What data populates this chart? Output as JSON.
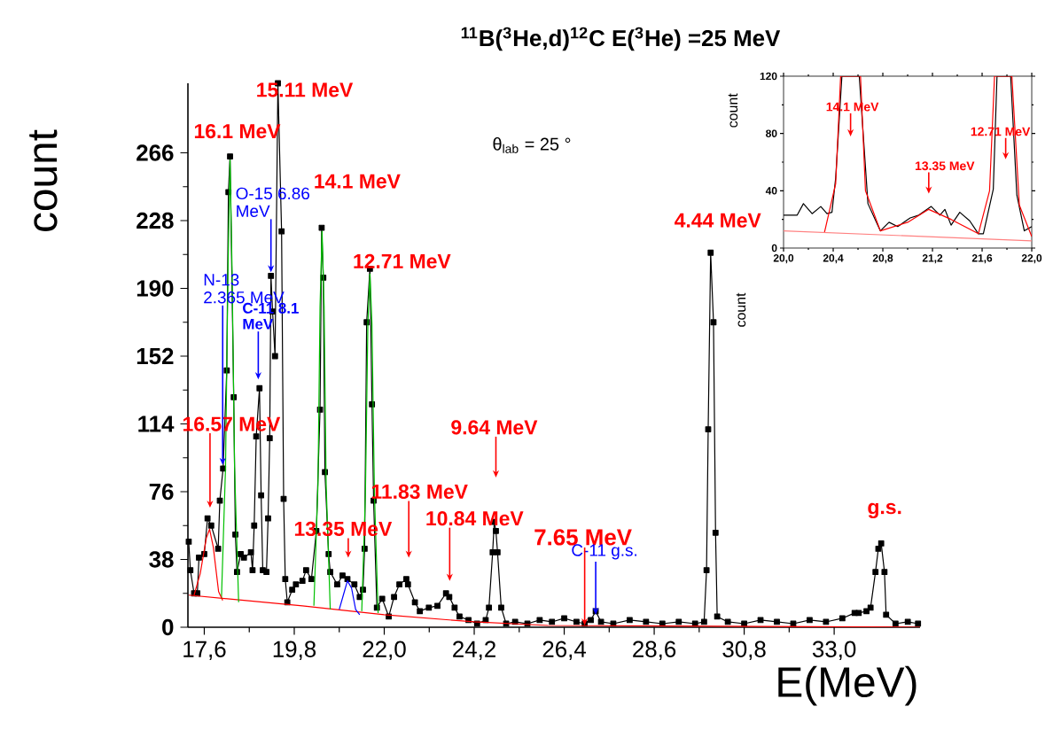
{
  "chart_data": [
    {
      "type": "line",
      "title": "$^{11}$B($^{3}$He,d)$^{12}$C   E($^{3}$He) =25 MeV",
      "xlabel": "E(MeV)",
      "ylabel": "count",
      "marker": "square",
      "xlim": [
        17.2,
        35.1
      ],
      "ylim": [
        0,
        305
      ],
      "xticks": [
        {
          "value": 17.6,
          "label": "17,6"
        },
        {
          "value": 19.8,
          "label": "19,8"
        },
        {
          "value": 22.0,
          "label": "22,0"
        },
        {
          "value": 24.2,
          "label": "24,2"
        },
        {
          "value": 26.4,
          "label": "26,4"
        },
        {
          "value": 28.6,
          "label": "28,6"
        },
        {
          "value": 30.8,
          "label": "30,8"
        },
        {
          "value": 33.0,
          "label": "33,0"
        }
      ],
      "yticks": [
        0,
        38,
        76,
        114,
        152,
        190,
        228,
        266
      ],
      "series": [
        {
          "color": "#000000",
          "x": [
            17.22,
            17.26,
            17.35,
            17.43,
            17.47,
            17.6,
            17.68,
            17.77,
            17.94,
            17.98,
            18.06,
            18.15,
            18.19,
            18.23,
            18.32,
            18.36,
            18.4,
            18.49,
            18.57,
            18.74,
            18.78,
            18.82,
            18.87,
            18.95,
            18.99,
            19.03,
            19.12,
            19.16,
            19.2,
            19.23,
            19.27,
            19.33,
            19.4,
            19.49,
            19.54,
            19.58,
            19.63,
            19.75,
            19.84,
            20.0,
            20.09,
            20.22,
            20.34,
            20.43,
            20.47,
            20.51,
            20.55,
            20.64,
            20.68,
            20.85,
            20.98,
            21.1,
            21.27,
            21.4,
            21.48,
            21.52,
            21.57,
            21.65,
            21.7,
            21.74,
            21.82,
            21.95,
            22.11,
            22.24,
            22.37,
            22.54,
            22.58,
            22.75,
            22.87,
            23.09,
            23.3,
            23.51,
            23.59,
            23.72,
            23.84,
            24.06,
            24.27,
            24.48,
            24.56,
            24.65,
            24.69,
            24.73,
            24.77,
            24.86,
            24.98,
            25.2,
            25.5,
            25.8,
            26.1,
            26.4,
            26.7,
            26.9,
            27.05,
            27.17,
            27.3,
            27.6,
            28.0,
            28.4,
            28.8,
            29.2,
            29.6,
            29.82,
            29.88,
            29.92,
            29.98,
            30.05,
            30.1,
            30.14,
            30.4,
            30.8,
            31.2,
            31.6,
            32.0,
            32.4,
            32.8,
            33.2,
            33.5,
            33.6,
            33.79,
            33.89,
            34.01,
            34.08,
            34.15,
            34.23,
            34.27,
            34.5,
            34.8,
            35.05
          ],
          "values": [
            48,
            32,
            19,
            19,
            39,
            41,
            61,
            57,
            44,
            71,
            89,
            144,
            244,
            264,
            129,
            52,
            31,
            41,
            39,
            42,
            32,
            57,
            107,
            134,
            74,
            32,
            31,
            61,
            106,
            197,
            177,
            152,
            305,
            222,
            72,
            27,
            14,
            21,
            24,
            26,
            32,
            27,
            54,
            122,
            224,
            196,
            87,
            41,
            31,
            24,
            29,
            27,
            24,
            17,
            21,
            44,
            171,
            201,
            125,
            71,
            11,
            16,
            6,
            17,
            24,
            27,
            24,
            14,
            9,
            11,
            12,
            19,
            17,
            11,
            6,
            4,
            2,
            4,
            11,
            42,
            59,
            54,
            42,
            11,
            2,
            3,
            2,
            4,
            3,
            5,
            3,
            2,
            4,
            9,
            3,
            2,
            4,
            3,
            2,
            3,
            2,
            3,
            32,
            111,
            210,
            171,
            53,
            6,
            3,
            2,
            4,
            3,
            2,
            4,
            3,
            5,
            8,
            8,
            9,
            11,
            31,
            44,
            47,
            31,
            7,
            2,
            3,
            2
          ]
        },
        {
          "color": "#ff0000",
          "marker": "none",
          "x": [
            17.22,
            20.0,
            22.0,
            24.2,
            26.0,
            35.1
          ],
          "values": [
            18,
            12,
            7,
            3,
            1,
            0
          ]
        },
        {
          "color": "#00c000",
          "marker": "none",
          "x": [
            18.02,
            18.12,
            18.18,
            18.23,
            18.28,
            18.34,
            18.44
          ],
          "values": [
            16,
            90,
            200,
            262,
            200,
            90,
            14
          ]
        },
        {
          "color": "#00c000",
          "marker": "none",
          "x": [
            20.28,
            20.38,
            20.43,
            20.48,
            20.53,
            20.58,
            20.68
          ],
          "values": [
            12,
            80,
            180,
            222,
            180,
            80,
            10
          ]
        },
        {
          "color": "#00c000",
          "marker": "none",
          "x": [
            21.45,
            21.54,
            21.6,
            21.65,
            21.7,
            21.76,
            21.85
          ],
          "values": [
            9,
            75,
            170,
            198,
            170,
            75,
            8
          ]
        },
        {
          "color": "#ff0000",
          "marker": "none",
          "x": [
            17.35,
            17.5,
            17.65,
            17.73,
            17.82,
            17.95,
            18.05
          ],
          "values": [
            18,
            30,
            50,
            55,
            45,
            20,
            15
          ]
        },
        {
          "color": "#0000ff",
          "marker": "none",
          "x": [
            20.9,
            21.0,
            21.1,
            21.2,
            21.3,
            21.4
          ],
          "values": [
            10,
            18,
            26,
            22,
            10,
            7
          ]
        }
      ],
      "annotations": [
        {
          "text": "16.1 MeV",
          "x": 18.23,
          "y": 264
        },
        {
          "text": "15.11 MeV",
          "x": 19.4,
          "y": 305
        },
        {
          "text": "14.1 MeV",
          "x": 20.47,
          "y": 224
        },
        {
          "text": "12.71 MeV",
          "x": 21.65,
          "y": 201
        },
        {
          "text": "16.57 MeV",
          "x": 17.74,
          "y": 67
        },
        {
          "text": "13.35 MeV",
          "x": 21.12,
          "y": 39
        },
        {
          "text": "11.83 MeV",
          "x": 22.6,
          "y": 39
        },
        {
          "text": "10.84 MeV",
          "x": 23.6,
          "y": 26
        },
        {
          "text": "9.64 MeV",
          "x": 24.73,
          "y": 84
        },
        {
          "text": "7.65 MeV",
          "x": 26.9,
          "y": 1
        },
        {
          "text": "C-11 g.s.",
          "x": 27.17,
          "y": 7
        },
        {
          "text": "4.44 MeV",
          "x": 29.98,
          "y": 210
        },
        {
          "text": "g.s.",
          "x": 34.15,
          "y": 47
        },
        {
          "text": "N-13 2.365 MeV",
          "x": 18.05,
          "y": 91
        },
        {
          "text": "C-11 8.1 MeV",
          "x": 18.92,
          "y": 139
        },
        {
          "text": "O-15 6.86 MeV",
          "x": 19.23,
          "y": 199
        },
        "θ$_{lab}$ = 25 °",
        "count"
      ]
    },
    {
      "type": "line",
      "ylabel": "count",
      "marker": "none",
      "xlim": [
        20.0,
        22.0
      ],
      "ylim": [
        0,
        120
      ],
      "xticks": [
        {
          "value": 20.0,
          "label": "20,0"
        },
        {
          "value": 20.4,
          "label": "20,4"
        },
        {
          "value": 20.8,
          "label": "20,8"
        },
        {
          "value": 21.2,
          "label": "21,2"
        },
        {
          "value": 21.6,
          "label": "21,6"
        },
        {
          "value": 22.0,
          "label": "22,0"
        }
      ],
      "yticks": [
        0,
        40,
        80,
        120
      ],
      "series": [
        {
          "color": "#000000",
          "x": [
            20.0,
            20.11,
            20.16,
            20.23,
            20.3,
            20.35,
            20.39,
            20.42,
            20.47,
            20.61,
            20.68,
            20.78,
            20.85,
            20.92,
            21.02,
            21.09,
            21.19,
            21.26,
            21.3,
            21.35,
            21.42,
            21.5,
            21.57,
            21.61,
            21.69,
            21.72,
            21.83,
            21.88,
            21.94,
            22.0
          ],
          "values": [
            23,
            23,
            31,
            24,
            29,
            24,
            25,
            49,
            120,
            120,
            31,
            12,
            18,
            15,
            21,
            23,
            29,
            23,
            27,
            16,
            25,
            19,
            10,
            10,
            41,
            120,
            120,
            37,
            12,
            15
          ]
        },
        {
          "color": "#ff0000",
          "x": [
            20.33,
            20.42,
            20.46,
            20.62,
            20.66,
            20.78,
            21.0,
            21.17,
            21.35,
            21.57,
            21.66,
            21.7,
            21.84,
            21.9,
            22.0
          ],
          "values": [
            11,
            45,
            120,
            120,
            40,
            12,
            18,
            27,
            20,
            10,
            40,
            120,
            120,
            30,
            8
          ]
        },
        {
          "color": "#ff8080",
          "x": [
            20.0,
            22.0
          ],
          "values": [
            12,
            5
          ]
        }
      ],
      "annotations": [
        {
          "text": "14.1 MeV",
          "x": 20.54,
          "y": 78
        },
        {
          "text": "13.35 MeV",
          "x": 21.17,
          "y": 38
        },
        {
          "text": "12.71 MeV",
          "x": 21.79,
          "y": 62
        }
      ]
    }
  ]
}
